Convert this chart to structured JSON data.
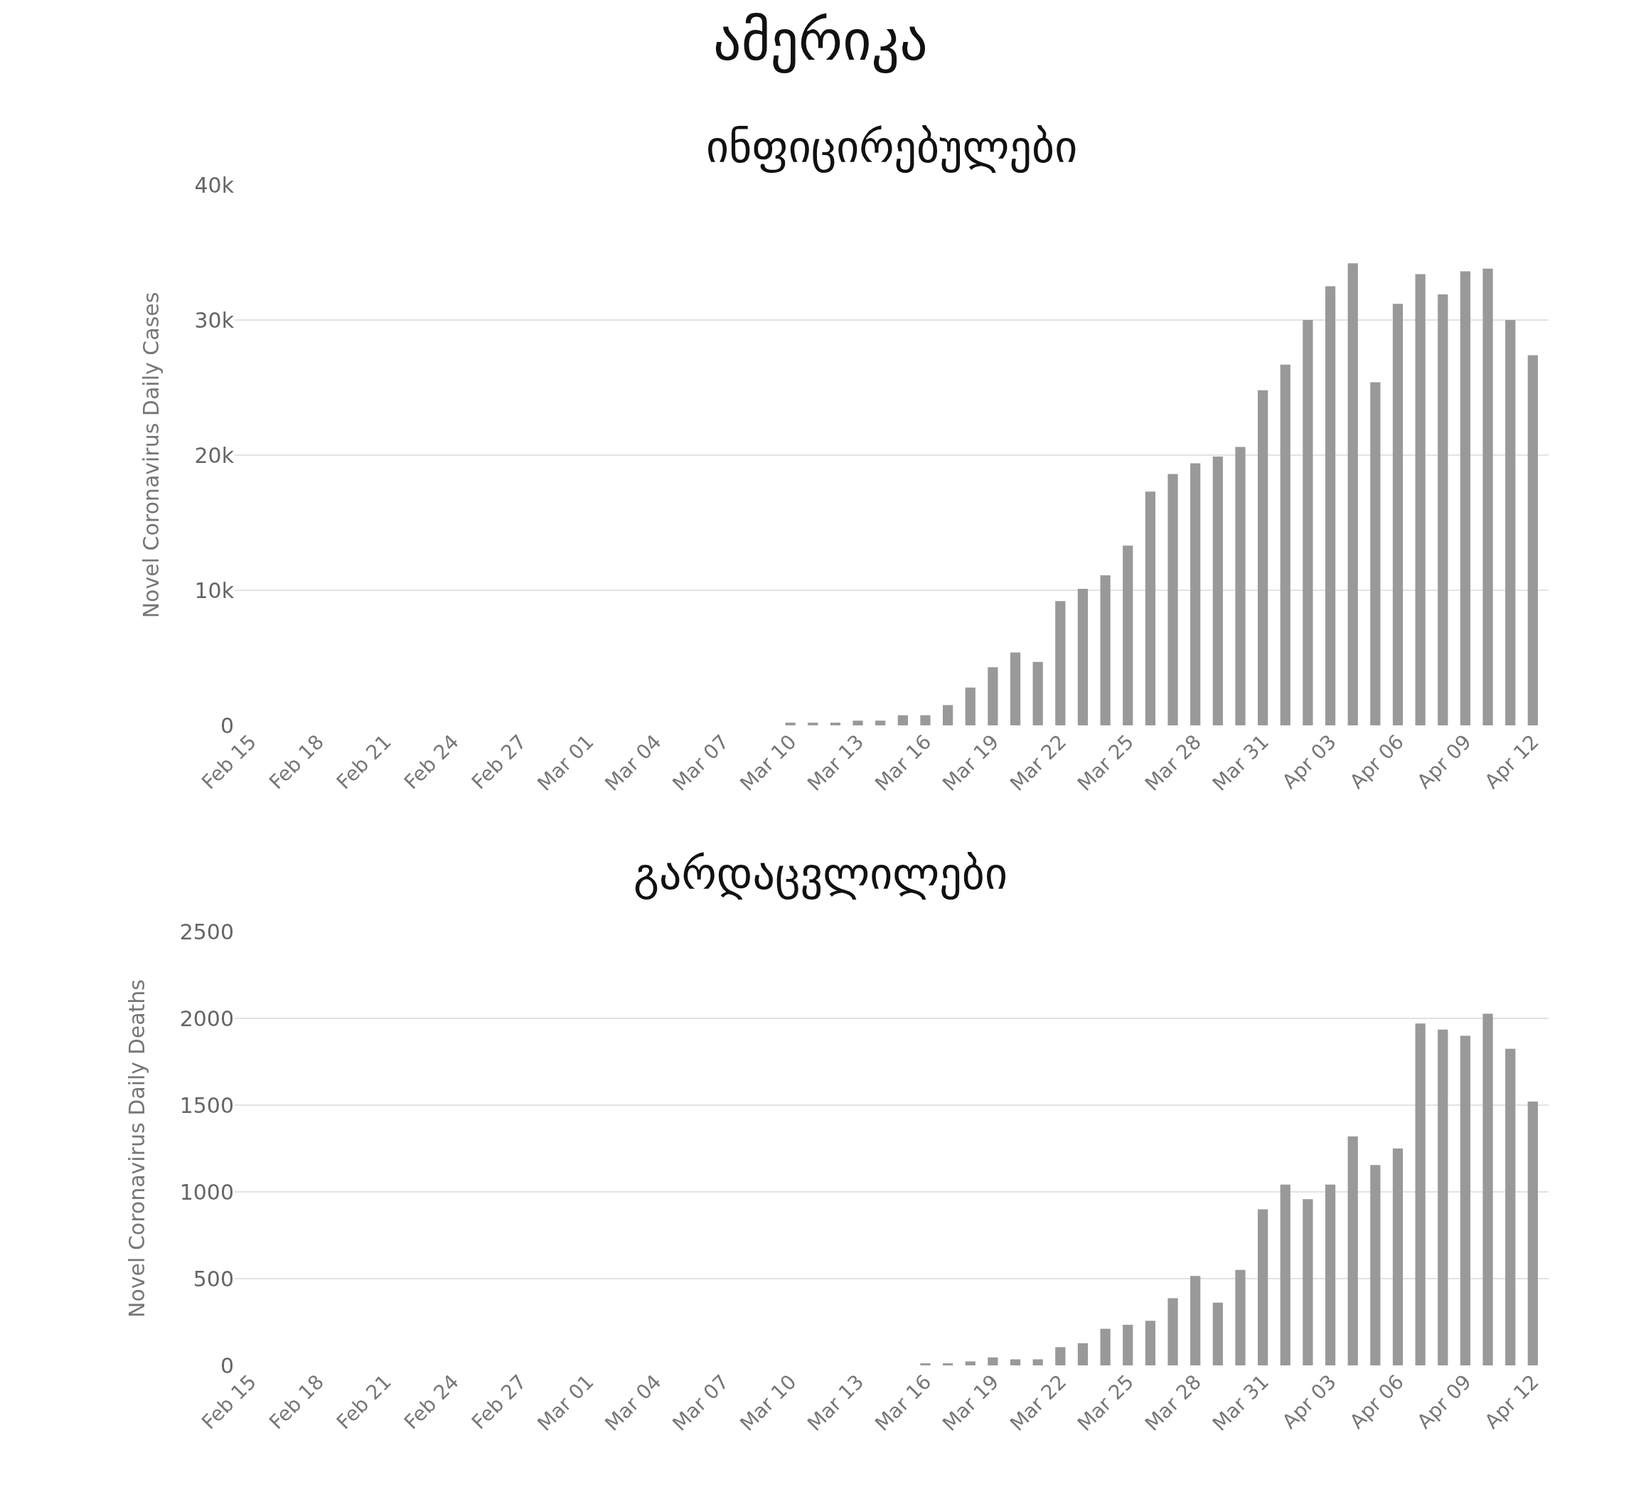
{
  "chart_data": [
    {
      "type": "bar",
      "title": "ამერიკა",
      "subtitle": "ინფიცირებულები",
      "ylabel": "Novel Coronavirus Daily Cases",
      "color": "#999999",
      "grid": "y",
      "categories": [
        "Feb 15",
        null,
        null,
        "Feb 18",
        null,
        null,
        "Feb 21",
        null,
        null,
        "Feb 24",
        null,
        null,
        "Feb 27",
        null,
        null,
        "Mar 01",
        null,
        null,
        "Mar 04",
        null,
        null,
        "Mar 07",
        null,
        null,
        "Mar 10",
        null,
        null,
        "Mar 13",
        null,
        null,
        "Mar 16",
        null,
        null,
        "Mar 19",
        null,
        null,
        "Mar 22",
        null,
        null,
        "Mar 25",
        null,
        null,
        "Mar 28",
        null,
        null,
        "Mar 31",
        null,
        null,
        "Apr 03",
        null,
        null,
        "Apr 06",
        null,
        null,
        "Apr 09",
        null,
        null,
        "Apr 12"
      ],
      "values": [
        0,
        0,
        0,
        0,
        0,
        0,
        0,
        0,
        0,
        0,
        0,
        0,
        0,
        0,
        0,
        0,
        0,
        0,
        0,
        0,
        0,
        0,
        0,
        0,
        200,
        200,
        200,
        350,
        350,
        750,
        750,
        1500,
        2800,
        4300,
        5400,
        4700,
        9200,
        10100,
        11100,
        13300,
        17300,
        18600,
        19400,
        19900,
        20600,
        24800,
        26700,
        30000,
        32500,
        34200,
        25400,
        31200,
        33400,
        31900,
        33600,
        33800,
        30000,
        27400
      ],
      "ylim": [
        0,
        40000
      ],
      "yticks": [
        0,
        {
          "value": 10000,
          "label": "10k"
        },
        {
          "value": 20000,
          "label": "20k"
        },
        {
          "value": 30000,
          "label": "30k"
        },
        {
          "value": 40000,
          "label": "40k"
        }
      ]
    },
    {
      "type": "bar",
      "title": "გარდაცვლილები",
      "ylabel": "Novel Coronavirus Daily Deaths",
      "color": "#999999",
      "grid": "y",
      "categories": [
        "Feb 15",
        null,
        null,
        "Feb 18",
        null,
        null,
        "Feb 21",
        null,
        null,
        "Feb 24",
        null,
        null,
        "Feb 27",
        null,
        null,
        "Mar 01",
        null,
        null,
        "Mar 04",
        null,
        null,
        "Mar 07",
        null,
        null,
        "Mar 10",
        null,
        null,
        "Mar 13",
        null,
        null,
        "Mar 16",
        null,
        null,
        "Mar 19",
        null,
        null,
        "Mar 22",
        null,
        null,
        "Mar 25",
        null,
        null,
        "Mar 28",
        null,
        null,
        "Mar 31",
        null,
        null,
        "Apr 03",
        null,
        null,
        "Apr 06",
        null,
        null,
        "Apr 09",
        null,
        null,
        "Apr 12"
      ],
      "values": [
        0,
        0,
        0,
        0,
        0,
        0,
        0,
        0,
        0,
        0,
        0,
        0,
        0,
        0,
        0,
        0,
        0,
        0,
        0,
        0,
        0,
        0,
        0,
        0,
        0,
        0,
        0,
        0,
        0,
        0,
        12,
        12,
        23,
        46,
        35,
        35,
        105,
        128,
        211,
        234,
        257,
        387,
        515,
        362,
        550,
        900,
        1042,
        958,
        1042,
        1320,
        1155,
        1250,
        1970,
        1935,
        1900,
        2027,
        1825,
        1520
      ],
      "ylim": [
        0,
        2500
      ],
      "yticks": [
        0,
        500,
        1000,
        1500,
        2000,
        2500
      ]
    }
  ]
}
